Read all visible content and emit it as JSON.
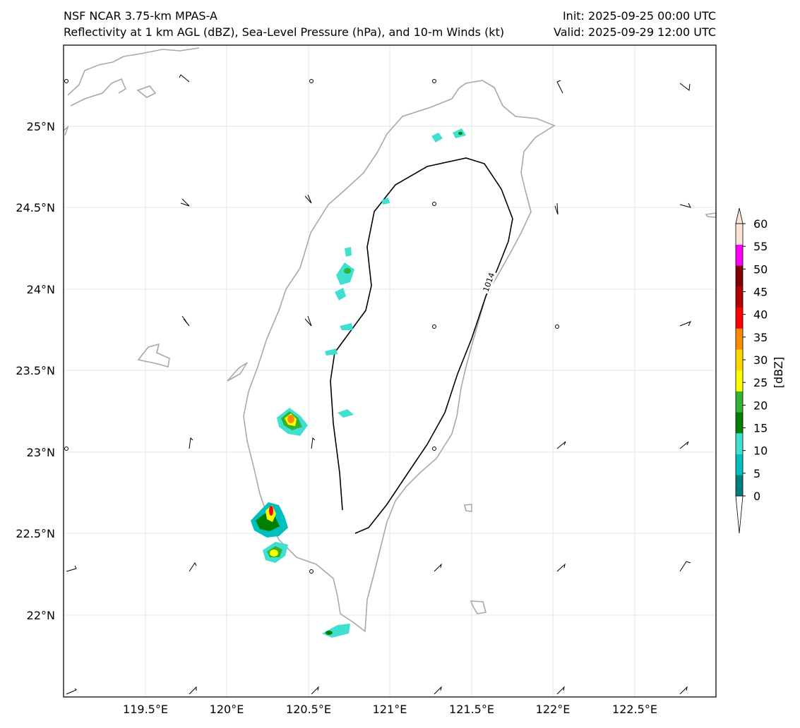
{
  "header": {
    "model_title": "NSF NCAR 3.75-km MPAS-A",
    "field_title": "Reflectivity at 1 km AGL (dBZ), Sea-Level Pressure (hPa), and 10-m Winds (kt)",
    "init_label": "Init: 2025-09-25 00:00 UTC",
    "valid_label": "Valid: 2025-09-29 12:00 UTC"
  },
  "map": {
    "extent": {
      "lon_min": 119.0,
      "lon_max": 123.0,
      "lat_min": 21.5,
      "lat_max": 25.5
    },
    "x_ticks": [
      "119.5°E",
      "120°E",
      "120.5°E",
      "121°E",
      "121.5°E",
      "122°E",
      "122.5°E"
    ],
    "y_ticks": [
      "25°N",
      "24.5°N",
      "24°N",
      "23.5°N",
      "23°N",
      "22.5°N",
      "22°N"
    ],
    "isobar_label": "1014"
  },
  "colorbar": {
    "unit_label": "[dBZ]",
    "tick_labels": [
      "0",
      "5",
      "10",
      "15",
      "20",
      "25",
      "30",
      "35",
      "40",
      "45",
      "50",
      "55",
      "60"
    ],
    "colors": [
      "#007f7f",
      "#00bfbf",
      "#40e0d0",
      "#008000",
      "#32b432",
      "#ffff00",
      "#ffd700",
      "#ff8c00",
      "#ff0000",
      "#b30000",
      "#800000",
      "#ff00ff",
      "#fbe4d5"
    ]
  }
}
